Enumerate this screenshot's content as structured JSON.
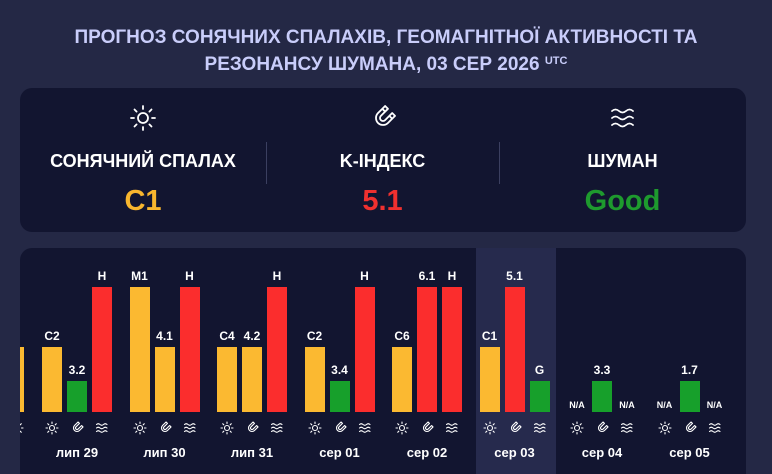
{
  "header": {
    "line1": "ПРОГНОЗ СОНЯЧНИХ СПАЛАХІВ, ГЕОМАГНІТНОЇ АКТИВНОСТІ ТА",
    "line2": "РЕЗОНАНСУ ШУМАНА, 03 СЕР 2026",
    "tz": "UTC"
  },
  "summary": {
    "flare": {
      "label": "СОНЯЧНИЙ СПАЛАХ",
      "value": "C1",
      "color": "#f8b62e",
      "icon": "sun-icon"
    },
    "kindex": {
      "label": "K-ІНДЕКС",
      "value": "5.1",
      "color": "#f0302f",
      "icon": "magnet-icon"
    },
    "schumann": {
      "label": "ШУМАН",
      "value": "Good",
      "color": "#1e9a2e",
      "icon": "waves-icon"
    }
  },
  "colors": {
    "yellow": "#fbb931",
    "green": "#17a02b",
    "red": "#fb2d2d",
    "label": "#ffffff"
  },
  "days": [
    {
      "label": "лип 29",
      "flare": "C2",
      "kindex": "3.2",
      "schumann": "H",
      "flare_level": 0.52,
      "kindex_level": 0.25,
      "schumann_level": 1.0,
      "kindex_color": "green",
      "schumann_color": "red"
    },
    {
      "label": "лип 30",
      "flare": "M1",
      "kindex": "4.1",
      "schumann": "H",
      "flare_level": 1.0,
      "kindex_level": 0.52,
      "schumann_level": 1.0,
      "kindex_color": "yellow",
      "schumann_color": "red"
    },
    {
      "label": "лип 31",
      "flare": "C4",
      "kindex": "4.2",
      "schumann": "H",
      "flare_level": 0.52,
      "kindex_level": 0.52,
      "schumann_level": 1.0,
      "kindex_color": "yellow",
      "schumann_color": "red"
    },
    {
      "label": "сер 01",
      "flare": "C2",
      "kindex": "3.4",
      "schumann": "H",
      "flare_level": 0.52,
      "kindex_level": 0.25,
      "schumann_level": 1.0,
      "kindex_color": "green",
      "schumann_color": "red"
    },
    {
      "label": "сер 02",
      "flare": "C6",
      "kindex": "6.1",
      "schumann": "H",
      "flare_level": 0.52,
      "kindex_level": 1.0,
      "schumann_level": 1.0,
      "kindex_color": "red",
      "schumann_color": "red"
    },
    {
      "label": "сер 03",
      "flare": "C1",
      "kindex": "5.1",
      "schumann": "G",
      "flare_level": 0.52,
      "kindex_level": 1.0,
      "schumann_level": 0.25,
      "kindex_color": "red",
      "schumann_color": "green"
    },
    {
      "label": "сер 04",
      "flare": "N/A",
      "kindex": "3.3",
      "schumann": "N/A",
      "flare_level": 0,
      "kindex_level": 0.25,
      "schumann_level": 0,
      "kindex_color": "green",
      "schumann_color": "red"
    },
    {
      "label": "сер 05",
      "flare": "N/A",
      "kindex": "1.7",
      "schumann": "N/A",
      "flare_level": 0,
      "kindex_level": 0.25,
      "schumann_level": 0,
      "kindex_color": "green",
      "schumann_color": "red"
    }
  ]
}
